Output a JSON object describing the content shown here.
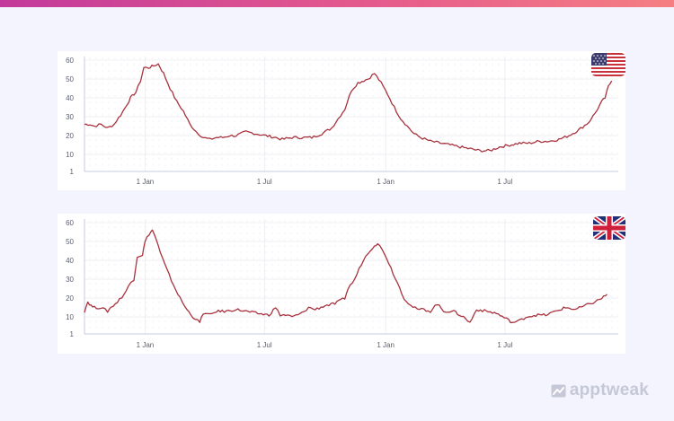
{
  "brand": {
    "name": "apptweak",
    "logo_icon": "apptweak-logo-icon"
  },
  "colors": {
    "line": "#a8323d",
    "grid": "#e4e6ee",
    "axis": "#c7cbe0",
    "accent_bar": "#e05a8f"
  },
  "chart_data": [
    {
      "type": "line",
      "flag": "us-flag-icon",
      "x_tick_labels": [
        "1 Jan",
        "1 Jul",
        "1 Jan",
        "1 Jul"
      ],
      "y_tick_labels": [
        "1",
        "10",
        "20",
        "30",
        "40",
        "50",
        "60"
      ],
      "y_ticks": [
        1,
        10,
        20,
        30,
        40,
        50,
        60
      ],
      "ylim": [
        1,
        60
      ],
      "grid": true,
      "legend": "none",
      "x_unit": "days since 1 Oct of first year",
      "x_ticks": [
        92,
        273,
        457,
        638
      ],
      "xlim": [
        0,
        810
      ],
      "series": [
        {
          "name": "",
          "points": [
            [
              0,
              26
            ],
            [
              8,
              26
            ],
            [
              15,
              25
            ],
            [
              25,
              26
            ],
            [
              35,
              24
            ],
            [
              45,
              26
            ],
            [
              55,
              31
            ],
            [
              62,
              35
            ],
            [
              70,
              40
            ],
            [
              78,
              43
            ],
            [
              85,
              49
            ],
            [
              90,
              56
            ],
            [
              97,
              56
            ],
            [
              105,
              57
            ],
            [
              112,
              58
            ],
            [
              120,
              53
            ],
            [
              130,
              45
            ],
            [
              140,
              38
            ],
            [
              150,
              33
            ],
            [
              160,
              26
            ],
            [
              170,
              22
            ],
            [
              180,
              19
            ],
            [
              190,
              18
            ],
            [
              200,
              19
            ],
            [
              210,
              19
            ],
            [
              220,
              20
            ],
            [
              230,
              20
            ],
            [
              245,
              22
            ],
            [
              260,
              21
            ],
            [
              275,
              20
            ],
            [
              290,
              19
            ],
            [
              300,
              18
            ],
            [
              315,
              19
            ],
            [
              330,
              19
            ],
            [
              345,
              19
            ],
            [
              360,
              21
            ],
            [
              375,
              24
            ],
            [
              385,
              29
            ],
            [
              395,
              34
            ],
            [
              405,
              44
            ],
            [
              415,
              48
            ],
            [
              430,
              50
            ],
            [
              440,
              53
            ],
            [
              450,
              48
            ],
            [
              460,
              42
            ],
            [
              470,
              35
            ],
            [
              480,
              29
            ],
            [
              490,
              25
            ],
            [
              500,
              21
            ],
            [
              510,
              19
            ],
            [
              525,
              17
            ],
            [
              540,
              16
            ],
            [
              555,
              15
            ],
            [
              570,
              14
            ],
            [
              585,
              13
            ],
            [
              600,
              12
            ],
            [
              615,
              12
            ],
            [
              630,
              14
            ],
            [
              645,
              15
            ],
            [
              660,
              16
            ],
            [
              675,
              16
            ],
            [
              690,
              17
            ],
            [
              705,
              17
            ],
            [
              720,
              18
            ],
            [
              735,
              20
            ],
            [
              750,
              23
            ],
            [
              765,
              27
            ],
            [
              775,
              32
            ],
            [
              785,
              38
            ],
            [
              790,
              40
            ],
            [
              795,
              46
            ],
            [
              800,
              49
            ]
          ]
        }
      ]
    },
    {
      "type": "line",
      "flag": "uk-flag-icon",
      "x_tick_labels": [
        "1 Jan",
        "1 Jul",
        "1 Jan",
        "1 Jul"
      ],
      "y_tick_labels": [
        "1",
        "10",
        "20",
        "30",
        "40",
        "50",
        "60"
      ],
      "y_ticks": [
        1,
        10,
        20,
        30,
        40,
        50,
        60
      ],
      "ylim": [
        1,
        60
      ],
      "grid": true,
      "legend": "none",
      "x_unit": "days since 1 Oct of first year",
      "x_ticks": [
        92,
        273,
        457,
        638
      ],
      "xlim": [
        0,
        810
      ],
      "series": [
        {
          "name": "",
          "points": [
            [
              0,
              13
            ],
            [
              5,
              18
            ],
            [
              10,
              16
            ],
            [
              15,
              15
            ],
            [
              25,
              15
            ],
            [
              35,
              13
            ],
            [
              40,
              15
            ],
            [
              50,
              18
            ],
            [
              60,
              22
            ],
            [
              70,
              28
            ],
            [
              75,
              30
            ],
            [
              80,
              42
            ],
            [
              88,
              43
            ],
            [
              92,
              50
            ],
            [
              98,
              54
            ],
            [
              103,
              56
            ],
            [
              108,
              52
            ],
            [
              115,
              44
            ],
            [
              125,
              35
            ],
            [
              135,
              27
            ],
            [
              145,
              20
            ],
            [
              155,
              14
            ],
            [
              165,
              10
            ],
            [
              175,
              7
            ],
            [
              180,
              12
            ],
            [
              190,
              11
            ],
            [
              200,
              13
            ],
            [
              215,
              13
            ],
            [
              230,
              14
            ],
            [
              245,
              13
            ],
            [
              260,
              12
            ],
            [
              280,
              11
            ],
            [
              290,
              15
            ],
            [
              297,
              11
            ],
            [
              305,
              11
            ],
            [
              315,
              10
            ],
            [
              330,
              12
            ],
            [
              340,
              15
            ],
            [
              350,
              14
            ],
            [
              365,
              16
            ],
            [
              380,
              17
            ],
            [
              395,
              20
            ],
            [
              400,
              25
            ],
            [
              410,
              30
            ],
            [
              420,
              38
            ],
            [
              430,
              44
            ],
            [
              440,
              48
            ],
            [
              445,
              49
            ],
            [
              455,
              44
            ],
            [
              465,
              36
            ],
            [
              475,
              28
            ],
            [
              485,
              20
            ],
            [
              495,
              16
            ],
            [
              505,
              14
            ],
            [
              515,
              14
            ],
            [
              525,
              13
            ],
            [
              535,
              17
            ],
            [
              545,
              13
            ],
            [
              560,
              13
            ],
            [
              575,
              10
            ],
            [
              585,
              7
            ],
            [
              595,
              14
            ],
            [
              610,
              13
            ],
            [
              625,
              12
            ],
            [
              640,
              9
            ],
            [
              650,
              7
            ],
            [
              660,
              8
            ],
            [
              670,
              10
            ],
            [
              685,
              11
            ],
            [
              700,
              11
            ],
            [
              715,
              13
            ],
            [
              730,
              15
            ],
            [
              745,
              14
            ],
            [
              760,
              16
            ],
            [
              775,
              18
            ],
            [
              785,
              20
            ],
            [
              793,
              22
            ]
          ]
        }
      ]
    }
  ]
}
